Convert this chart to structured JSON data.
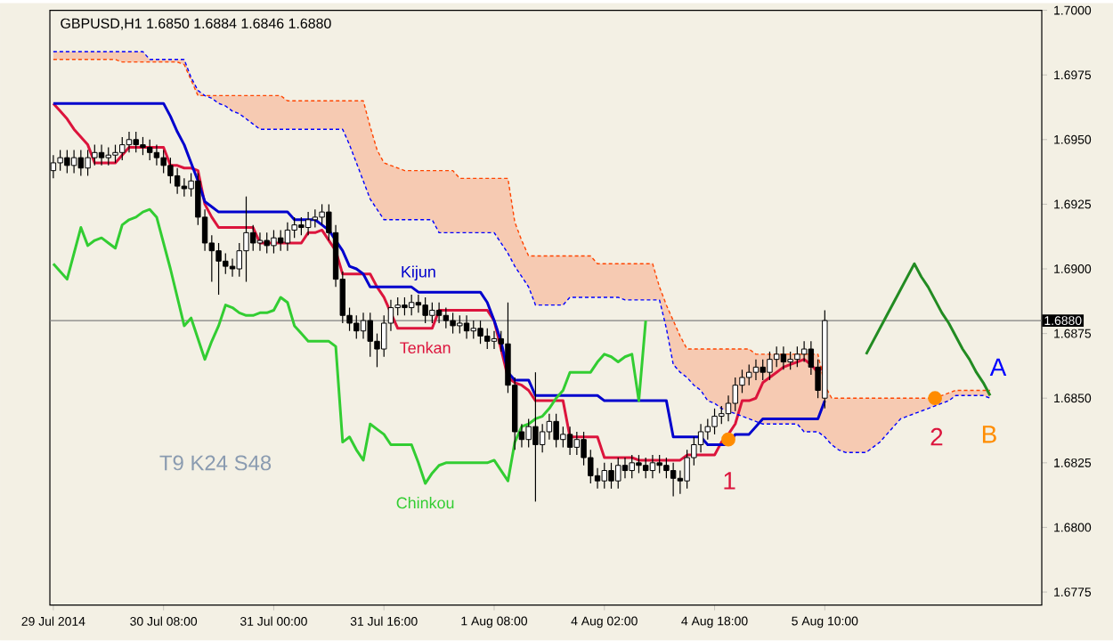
{
  "chart_data": {
    "type": "candlestick",
    "title": "GBPUSD,H1  1.6850 1.6884 1.6846 1.6880",
    "categories": [
      "29 Jul 2014",
      null,
      null,
      null,
      null,
      null,
      null,
      null,
      null,
      null,
      null,
      null,
      null,
      null,
      null,
      null,
      "30 Jul 08:00",
      null,
      null,
      null,
      null,
      null,
      null,
      null,
      null,
      null,
      null,
      null,
      null,
      null,
      null,
      null,
      "31 Jul 00:00",
      null,
      null,
      null,
      null,
      null,
      null,
      null,
      null,
      null,
      null,
      null,
      null,
      null,
      null,
      null,
      "31 Jul 16:00",
      null,
      null,
      null,
      null,
      null,
      null,
      null,
      null,
      null,
      null,
      null,
      null,
      null,
      null,
      null,
      "1 Aug 08:00",
      null,
      null,
      null,
      null,
      null,
      null,
      null,
      null,
      null,
      null,
      null,
      null,
      null,
      null,
      null,
      "4 Aug 02:00",
      null,
      null,
      null,
      null,
      null,
      null,
      null,
      null,
      null,
      null,
      null,
      null,
      null,
      null,
      null,
      "4 Aug 18:00",
      null,
      null,
      null,
      null,
      null,
      null,
      null,
      null,
      null,
      null,
      null,
      null,
      null,
      null,
      null,
      "5 Aug 10:00",
      null,
      null,
      null,
      null,
      null,
      null,
      null,
      null,
      null,
      null,
      null,
      null,
      null,
      null,
      null,
      null,
      null,
      null,
      null,
      null,
      null,
      null,
      null,
      null,
      null,
      null,
      null,
      null,
      null,
      null,
      null
    ],
    "ohlc": [
      [
        1.6938,
        1.6944,
        1.6935,
        1.6941
      ],
      [
        1.6941,
        1.6946,
        1.6938,
        1.6943
      ],
      [
        1.6943,
        1.6946,
        1.6937,
        1.694
      ],
      [
        1.694,
        1.6946,
        1.6937,
        1.6943
      ],
      [
        1.6943,
        1.6946,
        1.6936,
        1.6939
      ],
      [
        1.6939,
        1.6946,
        1.6936,
        1.6943
      ],
      [
        1.6943,
        1.6948,
        1.694,
        1.6945
      ],
      [
        1.6945,
        1.6948,
        1.694,
        1.6943
      ],
      [
        1.6943,
        1.6947,
        1.694,
        1.6944
      ],
      [
        1.6944,
        1.6948,
        1.6941,
        1.6945
      ],
      [
        1.6945,
        1.6951,
        1.6942,
        1.6948
      ],
      [
        1.6948,
        1.6953,
        1.6945,
        1.695
      ],
      [
        1.695,
        1.6953,
        1.6945,
        1.6948
      ],
      [
        1.6948,
        1.6951,
        1.6944,
        1.6947
      ],
      [
        1.6947,
        1.695,
        1.6942,
        1.6945
      ],
      [
        1.6945,
        1.6948,
        1.694,
        1.6943
      ],
      [
        1.6943,
        1.6946,
        1.6937,
        1.694
      ],
      [
        1.694,
        1.6943,
        1.6933,
        1.6936
      ],
      [
        1.6936,
        1.6939,
        1.6929,
        1.6932
      ],
      [
        1.6932,
        1.6935,
        1.6928,
        1.6931
      ],
      [
        1.6931,
        1.6937,
        1.6928,
        1.6934
      ],
      [
        1.6934,
        1.6937,
        1.6917,
        1.692
      ],
      [
        1.692,
        1.6923,
        1.6907,
        1.691
      ],
      [
        1.691,
        1.6913,
        1.6895,
        1.6907
      ],
      [
        1.6907,
        1.691,
        1.689,
        1.6903
      ],
      [
        1.6903,
        1.6906,
        1.6898,
        1.6901
      ],
      [
        1.6901,
        1.6904,
        1.6897,
        1.69
      ],
      [
        1.69,
        1.691,
        1.6897,
        1.6907
      ],
      [
        1.6907,
        1.6928,
        1.6895,
        1.6914
      ],
      [
        1.6914,
        1.6917,
        1.6907,
        1.691
      ],
      [
        1.691,
        1.6914,
        1.6907,
        1.6911
      ],
      [
        1.6911,
        1.6914,
        1.6906,
        1.6909
      ],
      [
        1.6909,
        1.6915,
        1.6906,
        1.6912
      ],
      [
        1.6912,
        1.6915,
        1.6907,
        1.691
      ],
      [
        1.691,
        1.6918,
        1.6907,
        1.6915
      ],
      [
        1.6915,
        1.692,
        1.6912,
        1.6917
      ],
      [
        1.6917,
        1.692,
        1.6913,
        1.6916
      ],
      [
        1.6916,
        1.6922,
        1.6913,
        1.6919
      ],
      [
        1.6919,
        1.6923,
        1.6916,
        1.692
      ],
      [
        1.692,
        1.6925,
        1.6917,
        1.6922
      ],
      [
        1.6922,
        1.6925,
        1.6911,
        1.6914
      ],
      [
        1.6914,
        1.6917,
        1.6893,
        1.6896
      ],
      [
        1.6896,
        1.6899,
        1.6879,
        1.6882
      ],
      [
        1.6882,
        1.6885,
        1.6876,
        1.6879
      ],
      [
        1.6879,
        1.6882,
        1.6873,
        1.6876
      ],
      [
        1.6876,
        1.6883,
        1.6873,
        1.688
      ],
      [
        1.688,
        1.6883,
        1.6866,
        1.6872
      ],
      [
        1.6872,
        1.6875,
        1.6862,
        1.6869
      ],
      [
        1.6869,
        1.6882,
        1.6866,
        1.6879
      ],
      [
        1.6879,
        1.6888,
        1.6876,
        1.6885
      ],
      [
        1.6885,
        1.6889,
        1.6882,
        1.6886
      ],
      [
        1.6886,
        1.6889,
        1.6882,
        1.6885
      ],
      [
        1.6885,
        1.689,
        1.6882,
        1.6887
      ],
      [
        1.6887,
        1.689,
        1.6883,
        1.6886
      ],
      [
        1.6886,
        1.6889,
        1.6879,
        1.6882
      ],
      [
        1.6882,
        1.6887,
        1.6879,
        1.6884
      ],
      [
        1.6884,
        1.6887,
        1.6879,
        1.6882
      ],
      [
        1.6882,
        1.6885,
        1.6877,
        1.688
      ],
      [
        1.688,
        1.6883,
        1.6875,
        1.6878
      ],
      [
        1.6878,
        1.6882,
        1.6875,
        1.6879
      ],
      [
        1.6879,
        1.6882,
        1.6873,
        1.6876
      ],
      [
        1.6876,
        1.688,
        1.6873,
        1.6877
      ],
      [
        1.6877,
        1.688,
        1.6871,
        1.6874
      ],
      [
        1.6874,
        1.6877,
        1.6869,
        1.6872
      ],
      [
        1.6872,
        1.6876,
        1.6869,
        1.6873
      ],
      [
        1.6873,
        1.6876,
        1.6868,
        1.6871
      ],
      [
        1.6871,
        1.6887,
        1.6852,
        1.6855
      ],
      [
        1.6855,
        1.6858,
        1.683,
        1.6837
      ],
      [
        1.6837,
        1.684,
        1.6831,
        1.6834
      ],
      [
        1.6834,
        1.6842,
        1.6831,
        1.6839
      ],
      [
        1.6839,
        1.686,
        1.681,
        1.6832
      ],
      [
        1.6832,
        1.684,
        1.6829,
        1.6837
      ],
      [
        1.6837,
        1.6844,
        1.6834,
        1.6841
      ],
      [
        1.6841,
        1.6844,
        1.6831,
        1.6834
      ],
      [
        1.6834,
        1.6839,
        1.6831,
        1.6836
      ],
      [
        1.6836,
        1.6839,
        1.6828,
        1.6831
      ],
      [
        1.6831,
        1.6837,
        1.6828,
        1.6834
      ],
      [
        1.6834,
        1.6837,
        1.6824,
        1.6827
      ],
      [
        1.6827,
        1.683,
        1.6817,
        1.682
      ],
      [
        1.682,
        1.6823,
        1.6815,
        1.6818
      ],
      [
        1.6818,
        1.6825,
        1.6815,
        1.6822
      ],
      [
        1.6822,
        1.6825,
        1.6815,
        1.6818
      ],
      [
        1.6818,
        1.6827,
        1.6815,
        1.6824
      ],
      [
        1.6824,
        1.6827,
        1.6819,
        1.6822
      ],
      [
        1.6822,
        1.6828,
        1.6819,
        1.6825
      ],
      [
        1.6825,
        1.6828,
        1.6821,
        1.6824
      ],
      [
        1.6824,
        1.6827,
        1.6819,
        1.6822
      ],
      [
        1.6822,
        1.6828,
        1.6819,
        1.6825
      ],
      [
        1.6825,
        1.6828,
        1.6821,
        1.6824
      ],
      [
        1.6824,
        1.6827,
        1.6819,
        1.6822
      ],
      [
        1.6822,
        1.6825,
        1.6812,
        1.6819
      ],
      [
        1.6819,
        1.6822,
        1.6813,
        1.6818
      ],
      [
        1.6818,
        1.683,
        1.6815,
        1.6827
      ],
      [
        1.6827,
        1.6835,
        1.6824,
        1.6832
      ],
      [
        1.6832,
        1.684,
        1.6829,
        1.6837
      ],
      [
        1.6837,
        1.6842,
        1.6834,
        1.6839
      ],
      [
        1.6839,
        1.6846,
        1.6836,
        1.6843
      ],
      [
        1.6843,
        1.6847,
        1.684,
        1.6844
      ],
      [
        1.6844,
        1.6851,
        1.6841,
        1.6848
      ],
      [
        1.6848,
        1.6858,
        1.6845,
        1.6855
      ],
      [
        1.6855,
        1.6861,
        1.6852,
        1.6858
      ],
      [
        1.6858,
        1.6863,
        1.6855,
        1.686
      ],
      [
        1.686,
        1.6865,
        1.6857,
        1.6862
      ],
      [
        1.6862,
        1.6865,
        1.6857,
        1.686
      ],
      [
        1.686,
        1.6868,
        1.6857,
        1.6865
      ],
      [
        1.6865,
        1.687,
        1.6862,
        1.6867
      ],
      [
        1.6867,
        1.687,
        1.6861,
        1.6864
      ],
      [
        1.6864,
        1.6868,
        1.6861,
        1.6865
      ],
      [
        1.6865,
        1.687,
        1.6862,
        1.6867
      ],
      [
        1.6867,
        1.6872,
        1.6864,
        1.6869
      ],
      [
        1.6869,
        1.6872,
        1.6859,
        1.6862
      ],
      [
        1.6862,
        1.6865,
        1.685,
        1.6853
      ],
      [
        1.685,
        1.6884,
        1.6846,
        1.688
      ],
      null,
      null,
      null,
      null,
      null,
      null,
      null,
      null,
      null,
      null,
      null,
      null,
      null,
      null,
      null,
      null,
      null,
      null,
      null,
      null,
      null,
      null,
      null,
      null,
      null,
      null,
      null,
      null,
      null,
      null,
      null
    ],
    "series": [
      {
        "name": "Tenkan",
        "type": "line",
        "color": "#dc143c",
        "values": [
          1.6964,
          1.6961,
          1.6958,
          1.6954,
          1.6951,
          1.6948,
          1.6941,
          1.6941,
          1.6941,
          1.6941,
          1.6944,
          1.6947,
          1.6947,
          1.6947,
          1.6947,
          1.6947,
          1.6947,
          1.694,
          1.694,
          1.6939,
          1.6939,
          1.6938,
          1.6925,
          1.692,
          1.6916,
          1.6916,
          1.6916,
          1.6916,
          1.6916,
          1.6916,
          1.691,
          1.691,
          1.691,
          1.691,
          1.691,
          1.691,
          1.691,
          1.6914,
          1.6914,
          1.6915,
          1.6911,
          1.6907,
          1.6898,
          1.6898,
          1.6898,
          1.6898,
          1.6898,
          1.6893,
          1.6889,
          1.6883,
          1.6877,
          1.6877,
          1.6877,
          1.6877,
          1.6877,
          1.6877,
          1.6884,
          1.6884,
          1.6884,
          1.6884,
          1.6884,
          1.6884,
          1.6884,
          1.6884,
          1.688,
          1.6869,
          1.6858,
          1.6856,
          1.6855,
          1.6853,
          1.6849,
          1.6849,
          1.6849,
          1.6849,
          1.6849,
          1.6835,
          1.6835,
          1.6835,
          1.6835,
          1.6835,
          1.6827,
          1.6827,
          1.6827,
          1.6827,
          1.6827,
          1.6826,
          1.6826,
          1.6826,
          1.6826,
          1.6826,
          1.6826,
          1.6826,
          1.6828,
          1.6828,
          1.6828,
          1.6828,
          1.6828,
          1.6833,
          1.6836,
          1.684,
          1.6849,
          1.6849,
          1.685,
          1.6856,
          1.6858,
          1.686,
          1.6862,
          1.6863,
          1.6864,
          1.6865,
          1.6863,
          1.686,
          1.6863,
          null,
          null,
          null,
          null,
          null,
          null,
          null,
          null,
          null,
          null,
          null,
          null,
          null,
          null,
          null,
          null,
          null,
          null,
          null,
          null,
          null,
          null,
          null,
          null,
          null,
          null,
          null,
          null,
          null,
          null,
          null
        ]
      },
      {
        "name": "Kijun",
        "type": "line",
        "color": "#0000cd",
        "values": [
          1.6964,
          1.6964,
          1.6964,
          1.6964,
          1.6964,
          1.6964,
          1.6964,
          1.6964,
          1.6964,
          1.6964,
          1.6964,
          1.6964,
          1.6964,
          1.6964,
          1.6964,
          1.6964,
          1.6964,
          1.6959,
          1.6953,
          1.6948,
          1.6941,
          1.6934,
          1.6926,
          1.6924,
          1.6922,
          1.6922,
          1.6922,
          1.6922,
          1.6922,
          1.6922,
          1.6922,
          1.6922,
          1.6922,
          1.6922,
          1.6922,
          1.6919,
          1.6919,
          1.6919,
          1.6919,
          1.6917,
          1.6915,
          1.6911,
          1.6907,
          1.6901,
          1.69,
          1.6898,
          1.6893,
          1.6893,
          1.6893,
          1.6893,
          1.6893,
          1.6893,
          1.6893,
          1.6891,
          1.6891,
          1.6891,
          1.6891,
          1.6891,
          1.6891,
          1.6891,
          1.6891,
          1.6891,
          1.6891,
          1.6887,
          1.688,
          1.6872,
          1.686,
          1.6857,
          1.6857,
          1.6857,
          1.6851,
          1.6851,
          1.6851,
          1.6851,
          1.6851,
          1.6851,
          1.6851,
          1.6851,
          1.6851,
          1.6851,
          1.6849,
          1.6849,
          1.6849,
          1.6849,
          1.6849,
          1.6849,
          1.6849,
          1.6849,
          1.6849,
          1.6849,
          1.6835,
          1.6835,
          1.6835,
          1.6835,
          1.6835,
          1.6832,
          1.6832,
          1.6832,
          1.6832,
          1.6836,
          1.6836,
          1.6836,
          1.6839,
          1.6842,
          1.6842,
          1.6842,
          1.6842,
          1.6842,
          1.6842,
          1.6842,
          1.6842,
          1.6842,
          1.6849,
          null,
          null,
          null,
          null,
          null,
          null,
          null,
          null,
          null,
          null,
          null,
          null,
          null,
          null,
          null,
          null,
          null,
          null,
          null,
          null,
          null,
          null,
          null,
          null,
          null,
          null,
          null,
          null,
          null,
          null,
          null
        ]
      },
      {
        "name": "Chinkou",
        "type": "line",
        "color": "#32cd32",
        "values": [
          1.6902,
          1.6899,
          1.6896,
          1.6906,
          1.6916,
          1.6909,
          1.6911,
          1.6912,
          1.691,
          1.6908,
          1.6917,
          1.6919,
          1.692,
          1.6922,
          1.6923,
          1.692,
          1.691,
          1.69,
          1.6889,
          1.6878,
          1.6881,
          1.6873,
          1.6865,
          1.6872,
          1.6878,
          1.6886,
          1.6885,
          1.6883,
          1.6882,
          1.6882,
          1.6883,
          1.6883,
          1.6884,
          1.6889,
          1.6887,
          1.6878,
          1.6875,
          1.6872,
          1.6872,
          1.6872,
          1.6872,
          1.687,
          1.6833,
          1.6835,
          1.683,
          1.6826,
          1.684,
          1.6838,
          1.6836,
          1.6832,
          1.6832,
          1.6832,
          1.6832,
          1.6825,
          1.6817,
          1.6821,
          1.6824,
          1.6825,
          1.6825,
          1.6825,
          1.6825,
          1.6825,
          1.6825,
          1.6825,
          1.6826,
          1.6822,
          1.6818,
          1.6833,
          1.6839,
          1.684,
          1.6842,
          1.6843,
          1.6846,
          1.685,
          1.6853,
          1.686,
          1.686,
          1.686,
          1.686,
          1.6864,
          1.6867,
          1.6866,
          1.6864,
          1.6866,
          1.6867,
          1.6849,
          1.688,
          null,
          null,
          null,
          null,
          null,
          null,
          null,
          null,
          null,
          null,
          null,
          null,
          null,
          null,
          null,
          null,
          null,
          null,
          null,
          null,
          null,
          null,
          null,
          null,
          null,
          null,
          null,
          null,
          null,
          null,
          null,
          null,
          null,
          null,
          null,
          null,
          null,
          null,
          null,
          null,
          null,
          null,
          null,
          null,
          null,
          null,
          null,
          null,
          null,
          null,
          null,
          null,
          null,
          null,
          null,
          null,
          null
        ]
      },
      {
        "type": "line",
        "color": "#ff4500",
        "line_style": "dashed",
        "values": [
          1.6981,
          1.6981,
          1.6981,
          1.6981,
          1.6981,
          1.6981,
          1.6981,
          1.6981,
          1.6981,
          1.6981,
          1.698,
          1.698,
          1.698,
          1.698,
          1.698,
          1.698,
          1.698,
          1.698,
          1.698,
          1.6979,
          1.6973,
          1.6967,
          1.6967,
          1.6967,
          1.6967,
          1.6967,
          1.6967,
          1.6967,
          1.6967,
          1.6967,
          1.6967,
          1.6967,
          1.6967,
          1.6967,
          1.6965,
          1.6965,
          1.6965,
          1.6965,
          1.6965,
          1.6965,
          1.6965,
          1.6965,
          1.6965,
          1.6965,
          1.6965,
          1.6965,
          1.6955,
          1.6946,
          1.6941,
          1.694,
          1.6939,
          1.6938,
          1.6938,
          1.6938,
          1.6938,
          1.6938,
          1.6938,
          1.6938,
          1.6938,
          1.6935,
          1.6935,
          1.6935,
          1.6935,
          1.6935,
          1.6935,
          1.6935,
          1.6935,
          1.6918,
          1.6911,
          1.6905,
          1.6905,
          1.6905,
          1.6905,
          1.6905,
          1.6905,
          1.6905,
          1.6905,
          1.6905,
          1.6905,
          1.6902,
          1.6902,
          1.6902,
          1.6902,
          1.6902,
          1.6902,
          1.6902,
          1.6902,
          1.6902,
          1.6893,
          1.6886,
          1.688,
          1.6874,
          1.6869,
          1.6869,
          1.6869,
          1.6869,
          1.6869,
          1.6869,
          1.6869,
          1.6869,
          1.6869,
          1.6869,
          1.6867,
          1.6867,
          1.6867,
          1.6867,
          1.6867,
          1.6867,
          1.6867,
          1.6867,
          1.6867,
          1.6867,
          1.6855,
          1.685,
          1.685,
          1.685,
          1.685,
          1.685,
          1.685,
          1.685,
          1.685,
          1.685,
          1.685,
          1.685,
          1.685,
          1.685,
          1.685,
          1.685,
          1.685,
          1.6851,
          1.6852,
          1.6853,
          1.6853,
          1.6853,
          1.6853,
          1.6853,
          1.6853,
          null,
          null,
          null,
          null,
          null,
          null,
          null
        ]
      },
      {
        "type": "line",
        "color": "#0000ff",
        "line_style": "dashed",
        "values": [
          1.6984,
          1.6984,
          1.6984,
          1.6984,
          1.6984,
          1.6984,
          1.6984,
          1.6984,
          1.6984,
          1.6984,
          1.6984,
          1.6984,
          1.6984,
          1.6984,
          1.6981,
          1.6981,
          1.6981,
          1.6981,
          1.6981,
          1.6981,
          1.6974,
          1.6969,
          1.6967,
          1.6966,
          1.6964,
          1.6963,
          1.6961,
          1.696,
          1.6958,
          1.6956,
          1.6954,
          1.6954,
          1.6954,
          1.6954,
          1.6954,
          1.6954,
          1.6954,
          1.6954,
          1.6954,
          1.6954,
          1.6954,
          1.6954,
          1.6954,
          1.6948,
          1.6941,
          1.6934,
          1.6927,
          1.6923,
          1.6919,
          1.6919,
          1.6919,
          1.6919,
          1.6919,
          1.6919,
          1.6919,
          1.6919,
          1.6914,
          1.6914,
          1.6914,
          1.6914,
          1.6914,
          1.6914,
          1.6914,
          1.6914,
          1.6914,
          1.691,
          1.6906,
          1.6901,
          1.6897,
          1.6893,
          1.6886,
          1.6886,
          1.6886,
          1.6886,
          1.6886,
          1.6889,
          1.6889,
          1.6889,
          1.6889,
          1.6889,
          1.6889,
          1.6889,
          1.6889,
          1.6888,
          1.6888,
          1.6888,
          1.6888,
          1.6888,
          1.6888,
          1.6877,
          1.6863,
          1.686,
          1.6858,
          1.6855,
          1.6853,
          1.6849,
          1.6848,
          1.6846,
          1.6845,
          1.6844,
          1.6843,
          1.6842,
          1.6841,
          1.684,
          1.684,
          1.684,
          1.684,
          1.684,
          1.684,
          1.6837,
          1.6837,
          1.6837,
          1.6835,
          1.6832,
          1.683,
          1.6829,
          1.6829,
          1.6829,
          1.6829,
          1.6831,
          1.6833,
          1.6836,
          1.6839,
          1.6842,
          1.6843,
          1.6844,
          1.6845,
          1.6846,
          1.6847,
          1.6848,
          1.6849,
          1.6851,
          1.6851,
          1.6851,
          1.6851,
          1.6851,
          1.685,
          null,
          null,
          null,
          null,
          null,
          null,
          null
        ]
      },
      {
        "type": "line",
        "color": "#228b22",
        "values": [
          null,
          null,
          null,
          null,
          null,
          null,
          null,
          null,
          null,
          null,
          null,
          null,
          null,
          null,
          null,
          null,
          null,
          null,
          null,
          null,
          null,
          null,
          null,
          null,
          null,
          null,
          null,
          null,
          null,
          null,
          null,
          null,
          null,
          null,
          null,
          null,
          null,
          null,
          null,
          null,
          null,
          null,
          null,
          null,
          null,
          null,
          null,
          null,
          null,
          null,
          null,
          null,
          null,
          null,
          null,
          null,
          null,
          null,
          null,
          null,
          null,
          null,
          null,
          null,
          null,
          null,
          null,
          null,
          null,
          null,
          null,
          null,
          null,
          null,
          null,
          null,
          null,
          null,
          null,
          null,
          null,
          null,
          null,
          null,
          null,
          null,
          null,
          null,
          null,
          null,
          null,
          null,
          null,
          null,
          null,
          null,
          null,
          null,
          null,
          null,
          null,
          null,
          null,
          null,
          null,
          null,
          null,
          null,
          null,
          null,
          null,
          null,
          null,
          null,
          null,
          null,
          null,
          null,
          1.6867,
          1.6872,
          1.6877,
          1.6882,
          1.6887,
          1.6892,
          1.6897,
          1.6902,
          1.6897,
          1.6893,
          1.6888,
          1.6883,
          1.6879,
          1.6874,
          1.6869,
          1.6865,
          1.686,
          1.6856,
          1.6851,
          null,
          null,
          null,
          null,
          null,
          null,
          null
        ]
      },
      {
        "type": "scatter",
        "color": "#ff8c00",
        "marker": "circle",
        "values": [
          null,
          null,
          null,
          null,
          null,
          null,
          null,
          null,
          null,
          null,
          null,
          null,
          null,
          null,
          null,
          null,
          null,
          null,
          null,
          null,
          null,
          null,
          null,
          null,
          null,
          null,
          null,
          null,
          null,
          null,
          null,
          null,
          null,
          null,
          null,
          null,
          null,
          null,
          null,
          null,
          null,
          null,
          null,
          null,
          null,
          null,
          null,
          null,
          null,
          null,
          null,
          null,
          null,
          null,
          null,
          null,
          null,
          null,
          null,
          null,
          null,
          null,
          null,
          null,
          null,
          null,
          null,
          null,
          null,
          null,
          null,
          null,
          null,
          null,
          null,
          null,
          null,
          null,
          null,
          null,
          null,
          null,
          null,
          null,
          null,
          null,
          null,
          null,
          null,
          null,
          null,
          null,
          null,
          null,
          null,
          null,
          null,
          null,
          1.6834,
          null,
          null,
          null,
          null,
          null,
          null,
          null,
          null,
          null,
          null,
          null,
          null,
          null,
          null,
          null,
          null,
          null,
          null,
          null,
          null,
          null,
          null,
          null,
          null,
          null,
          null,
          null,
          null,
          null,
          1.685,
          null,
          null,
          null,
          null,
          null,
          null,
          null,
          null,
          null,
          null,
          null,
          null,
          null,
          null,
          null
        ]
      }
    ],
    "ylim": [
      1.677,
      1.7
    ],
    "yticks": [
      {
        "value": 1.6775,
        "label": "1.6775"
      },
      {
        "value": 1.68,
        "label": "1.6800"
      },
      {
        "value": 1.6825,
        "label": "1.6825"
      },
      {
        "value": 1.685,
        "label": "1.6850"
      },
      {
        "value": 1.6875,
        "label": "1.6875"
      },
      {
        "value": 1.69,
        "label": "1.6900"
      },
      {
        "value": 1.6925,
        "label": "1.6925"
      },
      {
        "value": 1.695,
        "label": "1.6950"
      },
      {
        "value": 1.6975,
        "label": "1.6975"
      },
      {
        "value": 1.7,
        "label": "1.7000"
      }
    ],
    "ref_lines": [
      {
        "axis": "y",
        "value": 1.688,
        "label": "1.6880",
        "color": "#808080"
      }
    ],
    "annotations": [
      "1",
      "2",
      "A",
      "B",
      "T9 K24 S48"
    ]
  }
}
